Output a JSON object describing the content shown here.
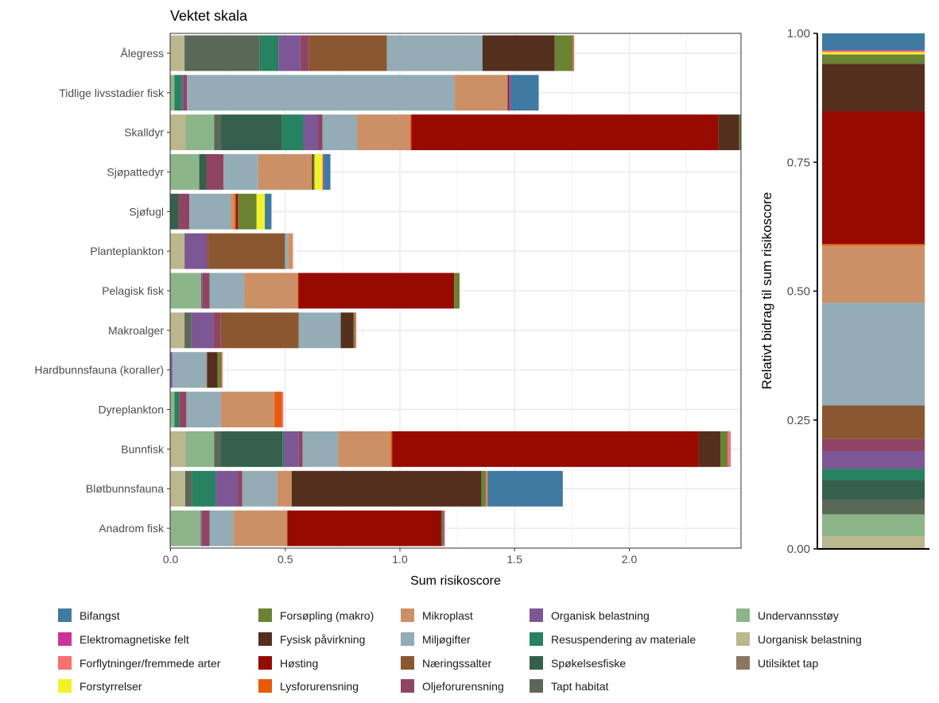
{
  "chart_data": [
    {
      "type": "bar",
      "orientation": "horizontal",
      "stacked": true,
      "title": "Vektet skala",
      "xlabel": "Sum risikoscore",
      "ylabel": "",
      "xlim": [
        0,
        2.49
      ],
      "xticks": [
        "0.0",
        "0.5",
        "1.0",
        "1.5",
        "2.0"
      ],
      "grid": true,
      "categories": [
        "Ålegress",
        "Tidlige livsstadier fisk",
        "Skalldyr",
        "Sjøpattedyr",
        "Sjøfugl",
        "Planteplankton",
        "Pelagisk fisk",
        "Makroalger",
        "Hardbunnsfauna (koraller)",
        "Dyreplankton",
        "Bunnfisk",
        "Bløtbunnsfauna",
        "Anadrom fisk"
      ],
      "series": [
        {
          "name": "Utilsiktet tap",
          "color": "#8B7760",
          "values": [
            0,
            0,
            0,
            0,
            0,
            0,
            0,
            0,
            0,
            0,
            0,
            0,
            0
          ]
        },
        {
          "name": "Uorganisk belastning",
          "color": "#BBB78E",
          "values": [
            0.061,
            0,
            0.066,
            0,
            0,
            0.061,
            0,
            0.061,
            0,
            0,
            0.066,
            0.064,
            0
          ]
        },
        {
          "name": "Undervannsstøy",
          "color": "#8DB58A",
          "values": [
            0,
            0.017,
            0.124,
            0.125,
            0,
            0,
            0.133,
            0,
            0,
            0.017,
            0.124,
            0,
            0.131
          ]
        },
        {
          "name": "Tapt habitat",
          "color": "#5A6858",
          "values": [
            0.328,
            0,
            0.03,
            0,
            0,
            0,
            0,
            0.03,
            0,
            0,
            0.03,
            0.029,
            0
          ]
        },
        {
          "name": "Spøkelsesfiske",
          "color": "#35604E",
          "values": [
            0,
            0,
            0.266,
            0.031,
            0.035,
            0,
            0,
            0,
            0,
            0,
            0.268,
            0,
            0
          ]
        },
        {
          "name": "Resuspendering av materiale",
          "color": "#268260",
          "values": [
            0.081,
            0.032,
            0.093,
            0,
            0,
            0,
            0,
            0,
            0,
            0.02,
            0.006,
            0.105,
            0
          ]
        },
        {
          "name": "Organisk belastning",
          "color": "#7D5695",
          "values": [
            0.096,
            0.006,
            0.064,
            0,
            0,
            0.095,
            0.005,
            0.095,
            0.008,
            0,
            0.065,
            0.095,
            0.005
          ]
        },
        {
          "name": "Oljeforurensning",
          "color": "#8F4562",
          "values": [
            0.038,
            0.017,
            0.019,
            0.075,
            0.047,
            0.006,
            0.032,
            0.033,
            0,
            0.032,
            0.017,
            0.02,
            0.034
          ]
        },
        {
          "name": "Næringssalter",
          "color": "#8B5731",
          "values": [
            0.339,
            0,
            0,
            0,
            0,
            0.337,
            0,
            0.34,
            0,
            0,
            0,
            0,
            0
          ]
        },
        {
          "name": "Miljøgifter",
          "color": "#93ACB6",
          "values": [
            0.417,
            1.165,
            0.151,
            0.151,
            0.18,
            0.013,
            0.151,
            0.183,
            0.148,
            0.15,
            0.155,
            0.151,
            0.103
          ]
        },
        {
          "name": "Mikroplast",
          "color": "#CB9066",
          "values": [
            0,
            0.233,
            0.231,
            0.235,
            0.017,
            0.019,
            0.233,
            0,
            0.003,
            0.235,
            0.229,
            0.064,
            0.236
          ]
        },
        {
          "name": "Lysforurensning",
          "color": "#E85A0A",
          "values": [
            0,
            0,
            0.006,
            0,
            0.006,
            0,
            0.003,
            0,
            0,
            0.031,
            0.006,
            0,
            0
          ]
        },
        {
          "name": "Høsting",
          "color": "#960A00",
          "values": [
            0,
            0,
            1.339,
            0,
            0.009,
            0,
            0.679,
            0,
            0,
            0,
            1.337,
            0,
            0.668
          ]
        },
        {
          "name": "Fysisk påvirkning",
          "color": "#552F1D",
          "values": [
            0.315,
            0.006,
            0.09,
            0.005,
            0,
            0,
            0,
            0.055,
            0.046,
            0,
            0.094,
            0.827,
            0.006
          ]
        },
        {
          "name": "Forsøpling (makro)",
          "color": "#6B8233",
          "values": [
            0.08,
            0,
            0.007,
            0.006,
            0.081,
            0,
            0.024,
            0.007,
            0.017,
            0,
            0.031,
            0.02,
            0.007
          ]
        },
        {
          "name": "Forstyrrelser",
          "color": "#F2F22A",
          "values": [
            0,
            0,
            0,
            0.035,
            0.036,
            0,
            0,
            0,
            0,
            0,
            0,
            0,
            0
          ]
        },
        {
          "name": "Forflytninger/fremmede arter",
          "color": "#F87070",
          "values": [
            0.005,
            0,
            0,
            0,
            0,
            0.003,
            0,
            0.006,
            0.005,
            0.006,
            0.01,
            0.007,
            0
          ]
        },
        {
          "name": "Elektromagnetiske felt",
          "color": "#CC3399",
          "values": [
            0,
            0.006,
            0,
            0.005,
            0,
            0,
            0,
            0,
            0,
            0,
            0.003,
            0,
            0.005
          ]
        },
        {
          "name": "Bifangst",
          "color": "#3F7AA2",
          "values": [
            0,
            0.123,
            0,
            0.029,
            0.029,
            0,
            0,
            0,
            0,
            0,
            0,
            0.328,
            0
          ]
        }
      ]
    },
    {
      "type": "bar",
      "stacked": true,
      "normalized": true,
      "ylabel": "Relativt bidrag til sum risikoscore",
      "ylim": [
        0,
        1
      ],
      "yticks": [
        "0.00",
        "0.25",
        "0.50",
        "0.75",
        "1.00"
      ],
      "note_values": "shares of total computed from series of the left chart"
    }
  ],
  "legend": {
    "position": "bottom",
    "columns": [
      [
        "Bifangst",
        "Elektromagnetiske felt",
        "Forflytninger/fremmede arter",
        "Forstyrrelser"
      ],
      [
        "Forsøpling (makro)",
        "Fysisk påvirkning",
        "Høsting",
        "Lysforurensning"
      ],
      [
        "Mikroplast",
        "Miljøgifter",
        "Næringssalter",
        "Oljeforurensning"
      ],
      [
        "Organisk belastning",
        "Resuspendering av materiale",
        "Spøkelsesfiske",
        "Tapt habitat"
      ],
      [
        "Undervannsstøy",
        "Uorganisk belastning",
        "Utilsiktet tap"
      ]
    ]
  }
}
